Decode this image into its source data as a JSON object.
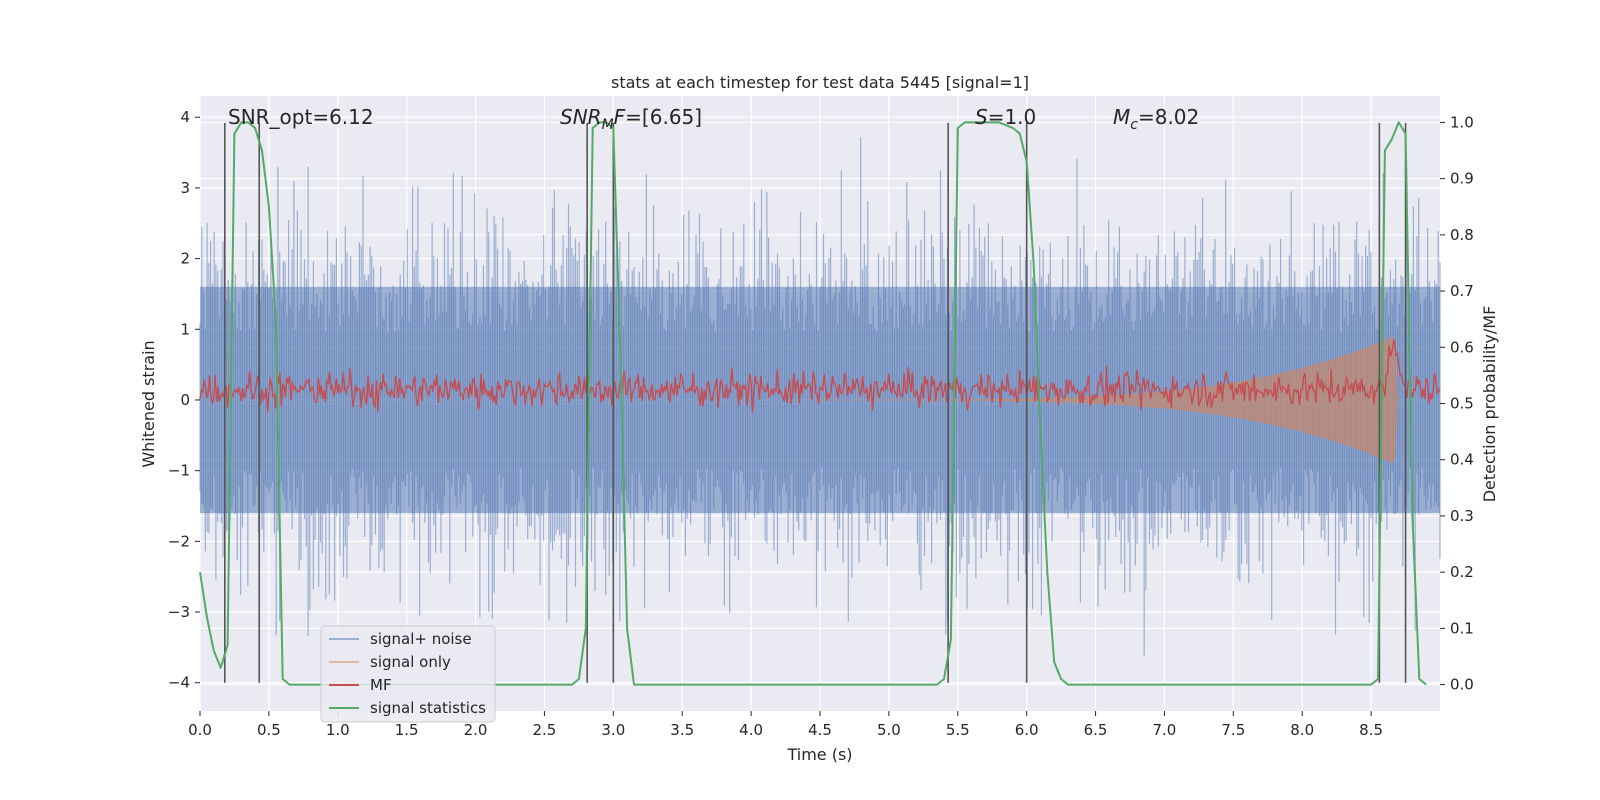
{
  "chart_data": {
    "type": "line",
    "title": "stats at each timestep for test data 5445 [signal=1]",
    "xlabel": "Time (s)",
    "ylabel": "Whitened strain",
    "y2label": "Detection probability/MF",
    "xlim": [
      0.0,
      9.0
    ],
    "ylim": [
      -4.4,
      4.3
    ],
    "y2lim": [
      -0.047,
      1.047
    ],
    "xticks": [
      0.0,
      0.5,
      1.0,
      1.5,
      2.0,
      2.5,
      3.0,
      3.5,
      4.0,
      4.5,
      5.0,
      5.5,
      6.0,
      6.5,
      7.0,
      7.5,
      8.0,
      8.5
    ],
    "xtick_labels": [
      "0.0",
      "0.5",
      "1.0",
      "1.5",
      "2.0",
      "2.5",
      "3.0",
      "3.5",
      "4.0",
      "4.5",
      "5.0",
      "5.5",
      "6.0",
      "6.5",
      "7.0",
      "7.5",
      "8.0",
      "8.5"
    ],
    "yticks": [
      -4,
      -3,
      -2,
      -1,
      0,
      1,
      2,
      3,
      4
    ],
    "ytick_labels": [
      "−4",
      "−3",
      "−2",
      "−1",
      "0",
      "1",
      "2",
      "3",
      "4"
    ],
    "y2ticks": [
      0.0,
      0.1,
      0.2,
      0.3,
      0.4,
      0.5,
      0.6,
      0.7,
      0.8,
      0.9,
      1.0
    ],
    "y2tick_labels": [
      "0.0",
      "0.1",
      "0.2",
      "0.3",
      "0.4",
      "0.5",
      "0.6",
      "0.7",
      "0.8",
      "0.9",
      "1.0"
    ],
    "grid": true,
    "legend_position": "lower-left",
    "annotations": [
      {
        "text": "SNR_opt=6.12",
        "x": 0.2,
        "y": 4.0
      },
      {
        "text": "SNR_MF=[6.65]",
        "x": 2.6,
        "y": 4.0
      },
      {
        "text": "S=1.0",
        "x": 5.6,
        "y": 4.0
      },
      {
        "text": "M_c=8.02",
        "x": 6.6,
        "y": 4.0
      }
    ],
    "vertical_lines_x": [
      0.18,
      0.43,
      2.81,
      3.0,
      5.43,
      6.0,
      8.56,
      8.75
    ],
    "series": [
      {
        "name": "signal+ noise",
        "color": "#4c72b0",
        "axis": "left",
        "kind": "noise_band",
        "x_range": [
          0.0,
          9.0
        ],
        "typical_range": [
          -1.6,
          1.6
        ],
        "peak_range": [
          -3.7,
          3.9
        ]
      },
      {
        "name": "signal only",
        "color": "#dd8452",
        "axis": "left",
        "kind": "chirp",
        "start_x": 4.5,
        "peak_x": 8.67,
        "peak_amplitude": 0.9
      },
      {
        "name": "MF",
        "color": "#c44e52",
        "axis": "right",
        "kind": "noise_band",
        "x_range": [
          0.0,
          9.0
        ],
        "center": 0.525,
        "half_width": 0.028,
        "peak": {
          "x": 8.67,
          "value": 0.62
        }
      },
      {
        "name": "signal statistics",
        "color": "#55a868",
        "axis": "right",
        "kind": "line",
        "x": [
          0.0,
          0.05,
          0.1,
          0.15,
          0.2,
          0.25,
          0.3,
          0.35,
          0.4,
          0.45,
          0.5,
          0.55,
          0.6,
          0.65,
          1.0,
          2.0,
          2.5,
          2.7,
          2.75,
          2.8,
          2.85,
          2.9,
          2.95,
          3.0,
          3.05,
          3.1,
          3.15,
          4.0,
          5.0,
          5.35,
          5.4,
          5.45,
          5.5,
          5.55,
          5.6,
          5.7,
          5.8,
          5.9,
          5.95,
          6.0,
          6.05,
          6.1,
          6.15,
          6.2,
          6.25,
          6.3,
          7.0,
          8.0,
          8.5,
          8.55,
          8.6,
          8.65,
          8.7,
          8.75,
          8.8,
          8.85,
          8.9
        ],
        "y": [
          0.2,
          0.12,
          0.06,
          0.03,
          0.07,
          0.98,
          1.0,
          1.0,
          0.99,
          0.95,
          0.85,
          0.65,
          0.01,
          0.0,
          0.0,
          0.0,
          0.0,
          0.0,
          0.01,
          0.1,
          0.99,
          1.0,
          1.0,
          0.99,
          0.6,
          0.1,
          0.0,
          0.0,
          0.0,
          0.0,
          0.01,
          0.08,
          0.99,
          1.0,
          1.0,
          1.0,
          1.0,
          0.99,
          0.98,
          0.93,
          0.75,
          0.45,
          0.2,
          0.04,
          0.01,
          0.0,
          0.0,
          0.0,
          0.0,
          0.01,
          0.95,
          0.97,
          1.0,
          0.98,
          0.3,
          0.01,
          0.0
        ]
      }
    ]
  }
}
